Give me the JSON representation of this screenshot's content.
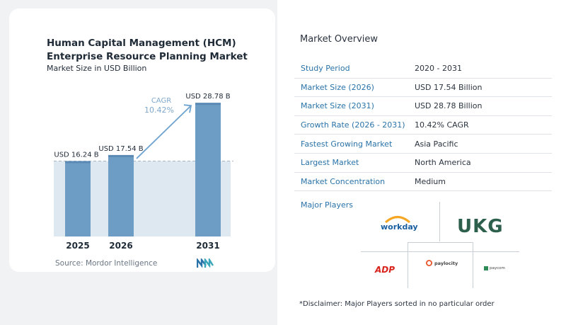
{
  "chart_data": {
    "type": "bar",
    "title": "Human Capital Management (HCM) Enterprise Resource Planning Market",
    "subtitle": "Market Size in USD Billion",
    "categories": [
      "2025",
      "2026",
      "2031"
    ],
    "values": [
      16.24,
      17.54,
      28.78
    ],
    "value_labels": [
      "USD 16.24 B",
      "USD 17.54 B",
      "USD 28.78 B"
    ],
    "cagr_label": "CAGR",
    "cagr_value": "10.42%",
    "xlabel": "",
    "ylabel": "",
    "grid": false,
    "colors": {
      "bar": "#6d9dc5",
      "bar_top": "#5b8bb5",
      "shade": "#dde8f1",
      "arrow": "#6fa3cf"
    }
  },
  "source": "Source: Mordor Intelligence",
  "overview": {
    "title": "Market Overview",
    "rows": [
      {
        "key": "Study Period",
        "value": "2020 - 2031"
      },
      {
        "key": "Market Size (2026)",
        "value": "USD 17.54 Billion"
      },
      {
        "key": "Market Size (2031)",
        "value": "USD 28.78 Billion"
      },
      {
        "key": "Growth Rate (2026 - 2031)",
        "value": "10.42% CAGR"
      },
      {
        "key": "Fastest Growing Market",
        "value": "Asia Pacific"
      },
      {
        "key": "Largest Market",
        "value": "North America"
      },
      {
        "key": "Market Concentration",
        "value": "Medium"
      }
    ]
  },
  "players": {
    "title": "Major Players",
    "workday": "workday",
    "ukg": "UKG",
    "adp": "ADP",
    "paylocity": "paylocity",
    "paycom": "paycom"
  },
  "disclaimer": "*Disclaimer: Major Players sorted in no particular order"
}
